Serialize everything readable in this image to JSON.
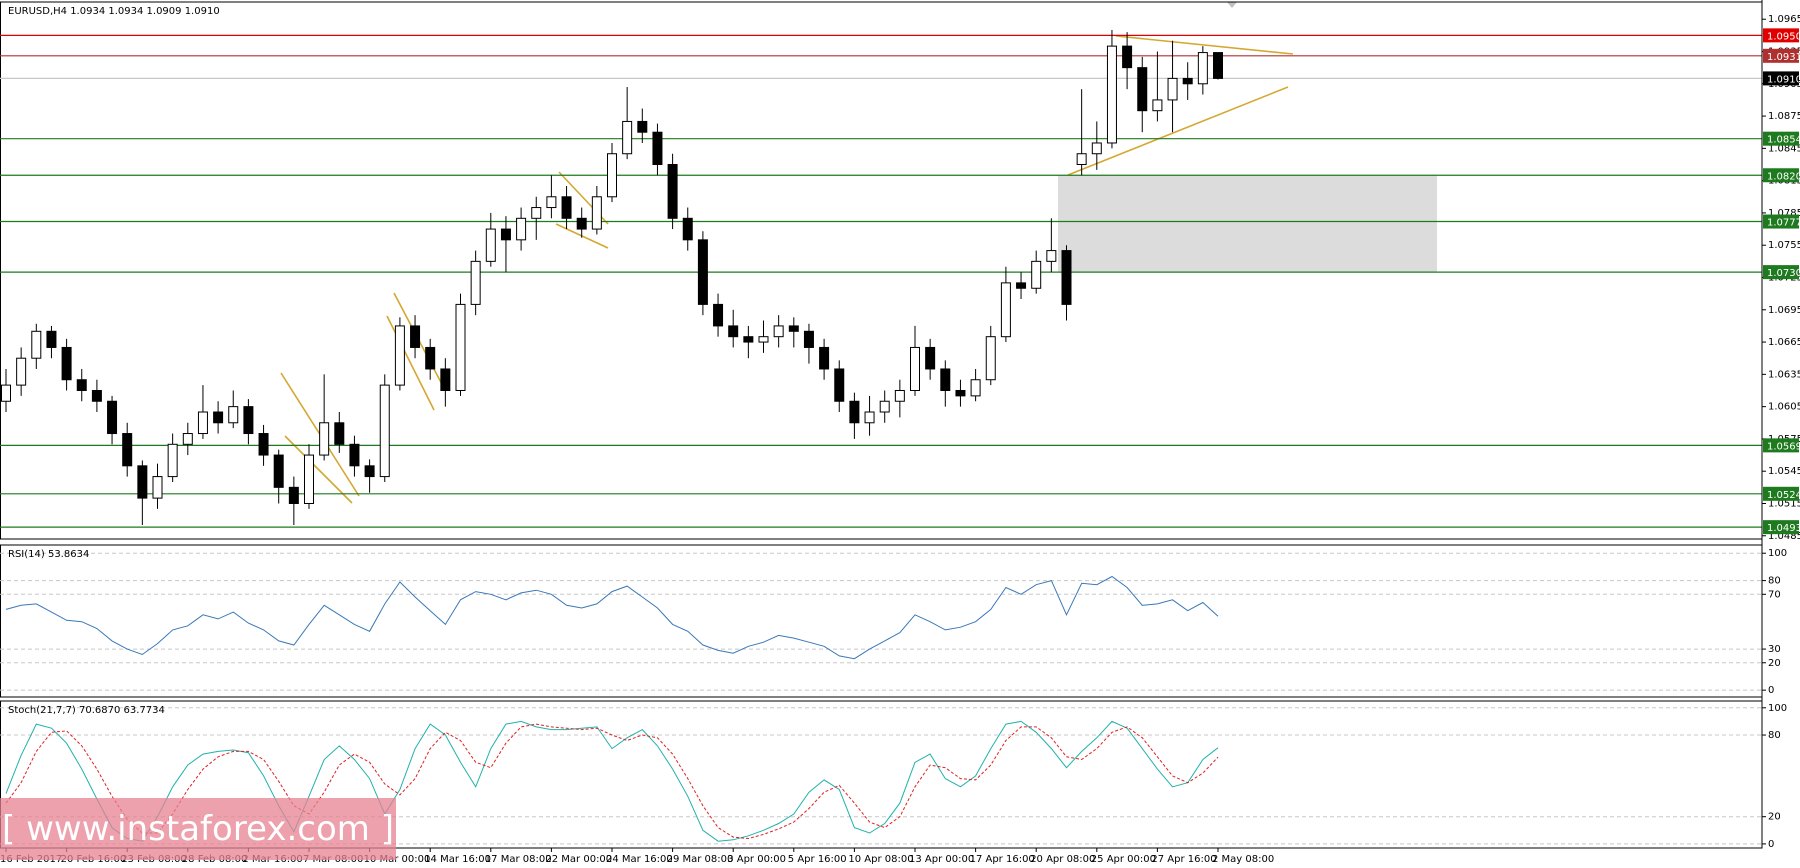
{
  "watermark": "[ www.instaforex.com ]",
  "chart_data": [
    {
      "type": "candlestick",
      "title": "EURUSD,H4  1.0934 1.0934 1.0909 1.0910",
      "categories": [
        "16 Feb 2017",
        null,
        null,
        null,
        "20 Feb 16:00",
        null,
        null,
        null,
        "23 Feb 08:00",
        null,
        null,
        null,
        "28 Feb 08:00",
        null,
        null,
        null,
        "2 Mar 16:00",
        null,
        null,
        null,
        "7 Mar 08:00",
        null,
        null,
        null,
        "10 Mar 00:00",
        null,
        null,
        null,
        "14 Mar 16:00",
        null,
        null,
        null,
        "17 Mar 08:00",
        null,
        null,
        null,
        "22 Mar 00:00",
        null,
        null,
        null,
        "24 Mar 16:00",
        null,
        null,
        null,
        "29 Mar 08:00",
        null,
        null,
        null,
        "3 Apr 00:00",
        null,
        null,
        null,
        "5 Apr 16:00",
        null,
        null,
        null,
        "10 Apr 08:00",
        null,
        null,
        null,
        "13 Apr 00:00",
        null,
        null,
        null,
        "17 Apr 16:00",
        null,
        null,
        null,
        "20 Apr 08:00",
        null,
        null,
        null,
        "25 Apr 00:00",
        null,
        null,
        null,
        "27 Apr 16:00",
        null,
        null,
        null,
        "2 May 08:00"
      ],
      "ohlc": [
        [
          1.061,
          1.064,
          1.06,
          1.0625
        ],
        [
          1.0625,
          1.066,
          1.0615,
          1.065
        ],
        [
          1.065,
          1.0682,
          1.064,
          1.0675
        ],
        [
          1.0675,
          1.068,
          1.065,
          1.066
        ],
        [
          1.066,
          1.0668,
          1.062,
          1.063
        ],
        [
          1.063,
          1.064,
          1.061,
          1.062
        ],
        [
          1.062,
          1.063,
          1.06,
          1.061
        ],
        [
          1.061,
          1.0615,
          1.057,
          1.058
        ],
        [
          1.058,
          1.059,
          1.054,
          1.055
        ],
        [
          1.055,
          1.0555,
          1.0495,
          1.052
        ],
        [
          1.052,
          1.0552,
          1.051,
          1.054
        ],
        [
          1.054,
          1.058,
          1.0535,
          1.057
        ],
        [
          1.057,
          1.059,
          1.056,
          1.058
        ],
        [
          1.058,
          1.0625,
          1.0575,
          1.06
        ],
        [
          1.06,
          1.061,
          1.058,
          1.059
        ],
        [
          1.059,
          1.062,
          1.0585,
          1.0605
        ],
        [
          1.0605,
          1.0612,
          1.057,
          1.058
        ],
        [
          1.058,
          1.0588,
          1.055,
          1.056
        ],
        [
          1.056,
          1.0565,
          1.0515,
          1.053
        ],
        [
          1.053,
          1.054,
          1.0495,
          1.0515
        ],
        [
          1.0515,
          1.057,
          1.051,
          1.056
        ],
        [
          1.056,
          1.0635,
          1.0555,
          1.059
        ],
        [
          1.059,
          1.06,
          1.0562,
          1.057
        ],
        [
          1.057,
          1.0578,
          1.054,
          1.055
        ],
        [
          1.055,
          1.0556,
          1.0525,
          1.054
        ],
        [
          1.054,
          1.0635,
          1.0535,
          1.0625
        ],
        [
          1.0625,
          1.0688,
          1.062,
          1.068
        ],
        [
          1.068,
          1.069,
          1.065,
          1.066
        ],
        [
          1.066,
          1.0668,
          1.063,
          1.064
        ],
        [
          1.064,
          1.065,
          1.0605,
          1.062
        ],
        [
          1.062,
          1.071,
          1.0615,
          1.07
        ],
        [
          1.07,
          1.075,
          1.069,
          1.074
        ],
        [
          1.074,
          1.0785,
          1.0735,
          1.077
        ],
        [
          1.077,
          1.0782,
          1.073,
          1.076
        ],
        [
          1.076,
          1.079,
          1.075,
          1.078
        ],
        [
          1.078,
          1.08,
          1.076,
          1.079
        ],
        [
          1.079,
          1.082,
          1.078,
          1.08
        ],
        [
          1.08,
          1.081,
          1.077,
          1.078
        ],
        [
          1.078,
          1.079,
          1.0762,
          1.077
        ],
        [
          1.077,
          1.081,
          1.0765,
          1.08
        ],
        [
          1.08,
          1.085,
          1.0795,
          1.084
        ],
        [
          1.084,
          1.0902,
          1.0835,
          1.087
        ],
        [
          1.087,
          1.0882,
          1.085,
          1.086
        ],
        [
          1.086,
          1.0868,
          1.082,
          1.083
        ],
        [
          1.083,
          1.084,
          1.077,
          1.078
        ],
        [
          1.078,
          1.079,
          1.075,
          1.076
        ],
        [
          1.076,
          1.0768,
          1.069,
          1.07
        ],
        [
          1.07,
          1.071,
          1.067,
          1.068
        ],
        [
          1.068,
          1.0695,
          1.066,
          1.067
        ],
        [
          1.067,
          1.068,
          1.065,
          1.0665
        ],
        [
          1.0665,
          1.0685,
          1.0655,
          1.067
        ],
        [
          1.067,
          1.069,
          1.066,
          1.068
        ],
        [
          1.068,
          1.0688,
          1.066,
          1.0675
        ],
        [
          1.0675,
          1.0682,
          1.0645,
          1.066
        ],
        [
          1.066,
          1.0668,
          1.063,
          1.064
        ],
        [
          1.064,
          1.0648,
          1.06,
          1.061
        ],
        [
          1.061,
          1.0618,
          1.0575,
          1.059
        ],
        [
          1.059,
          1.0615,
          1.0578,
          1.06
        ],
        [
          1.06,
          1.062,
          1.059,
          1.061
        ],
        [
          1.061,
          1.063,
          1.0595,
          1.062
        ],
        [
          1.062,
          1.068,
          1.0615,
          1.066
        ],
        [
          1.066,
          1.0668,
          1.063,
          1.064
        ],
        [
          1.064,
          1.0648,
          1.0605,
          1.062
        ],
        [
          1.062,
          1.063,
          1.0605,
          1.0615
        ],
        [
          1.0615,
          1.064,
          1.061,
          1.063
        ],
        [
          1.063,
          1.068,
          1.0625,
          1.067
        ],
        [
          1.067,
          1.0735,
          1.0665,
          1.072
        ],
        [
          1.072,
          1.073,
          1.0705,
          1.0715
        ],
        [
          1.0715,
          1.075,
          1.071,
          1.074
        ],
        [
          1.074,
          1.078,
          1.073,
          1.075
        ],
        [
          1.075,
          1.0755,
          1.0685,
          1.07
        ],
        [
          1.083,
          1.09,
          1.082,
          1.084
        ],
        [
          1.084,
          1.087,
          1.0825,
          1.085
        ],
        [
          1.085,
          1.0955,
          1.0845,
          1.094
        ],
        [
          1.094,
          1.0953,
          1.09,
          1.092
        ],
        [
          1.092,
          1.093,
          1.086,
          1.088
        ],
        [
          1.088,
          1.0935,
          1.087,
          1.089
        ],
        [
          1.089,
          1.0945,
          1.086,
          1.091
        ],
        [
          1.091,
          1.0925,
          1.089,
          1.0905
        ],
        [
          1.0905,
          1.094,
          1.0895,
          1.0934
        ],
        [
          1.0934,
          1.0934,
          1.0909,
          1.091
        ]
      ],
      "up_color": "#ffffff",
      "down_color": "#000000",
      "ylim": [
        1.0482,
        1.0981
      ],
      "yticks": [
        1.0965,
        1.0935,
        1.0905,
        1.0875,
        1.0845,
        1.0815,
        1.0785,
        1.0755,
        1.0725,
        1.0695,
        1.0665,
        1.0635,
        1.0605,
        1.0575,
        1.0545,
        1.0515,
        1.0485
      ],
      "levels": [
        {
          "value": 1.095,
          "label": "1.0950",
          "color": "#e00000"
        },
        {
          "value": 1.0931,
          "label": "1.0931",
          "color": "#b03030"
        },
        {
          "value": 1.091,
          "label": "1.0910",
          "color": "#000000"
        },
        {
          "value": 1.0854,
          "label": "1.0854",
          "color": "#1e7a1e"
        },
        {
          "value": 1.082,
          "label": "1.0820",
          "color": "#1e7a1e"
        },
        {
          "value": 1.0777,
          "label": "1.0777",
          "color": "#1e7a1e"
        },
        {
          "value": 1.073,
          "label": "1.0730",
          "color": "#1e7a1e"
        },
        {
          "value": 1.0569,
          "label": "1.0569",
          "color": "#1e7a1e"
        },
        {
          "value": 1.0524,
          "label": "1.0524",
          "color": "#1e7a1e"
        },
        {
          "value": 1.0493,
          "label": "1.0493",
          "color": "#1e7a1e"
        }
      ]
    },
    {
      "type": "line",
      "title": "RSI(14) 53.8634",
      "ylim": [
        -5,
        106
      ],
      "yticks": [
        100,
        80,
        70,
        30,
        20,
        0
      ],
      "grid": true,
      "series": [
        {
          "color": "#3a78b8",
          "values": [
            59,
            62,
            63,
            57,
            51,
            50,
            45,
            36,
            30,
            26,
            34,
            44,
            47,
            55,
            52,
            57,
            49,
            44,
            36,
            33,
            48,
            62,
            55,
            48,
            43,
            63,
            79,
            68,
            58,
            48,
            66,
            72,
            70,
            66,
            71,
            73,
            70,
            62,
            60,
            63,
            72,
            76,
            68,
            60,
            48,
            43,
            33,
            29,
            27,
            32,
            35,
            40,
            38,
            35,
            32,
            25,
            23,
            30,
            36,
            42,
            55,
            50,
            44,
            46,
            50,
            59,
            75,
            70,
            77,
            80,
            55,
            78,
            77,
            83,
            75,
            62,
            63,
            66,
            58,
            64,
            54
          ]
        }
      ]
    },
    {
      "type": "line",
      "title": "Stoch(21,7,7) 70.6870 63.7734",
      "ylim": [
        -3,
        105
      ],
      "yticks": [
        100,
        80,
        20,
        0
      ],
      "grid": true,
      "series": [
        {
          "color": "#20b2aa",
          "values": [
            37,
            65,
            88,
            85,
            74,
            55,
            33,
            12,
            4,
            2,
            20,
            42,
            58,
            66,
            68,
            69,
            67,
            50,
            28,
            9,
            35,
            62,
            72,
            62,
            48,
            22,
            40,
            70,
            88,
            80,
            60,
            42,
            70,
            88,
            90,
            86,
            84,
            84,
            85,
            86,
            70,
            78,
            84,
            72,
            55,
            35,
            10,
            2,
            3,
            6,
            10,
            15,
            22,
            38,
            47,
            40,
            12,
            8,
            15,
            30,
            60,
            66,
            48,
            42,
            50,
            70,
            88,
            90,
            82,
            70,
            56,
            68,
            78,
            90,
            85,
            70,
            55,
            42,
            45,
            62,
            70.7
          ]
        },
        {
          "color": "#e02020",
          "dashed": true,
          "values": [
            30,
            45,
            68,
            82,
            83,
            72,
            55,
            35,
            18,
            8,
            8,
            22,
            40,
            55,
            64,
            68,
            68,
            62,
            46,
            28,
            22,
            38,
            58,
            66,
            60,
            44,
            36,
            48,
            70,
            82,
            76,
            60,
            56,
            74,
            86,
            88,
            86,
            85,
            84,
            85,
            80,
            76,
            80,
            78,
            66,
            48,
            28,
            12,
            5,
            4,
            7,
            11,
            16,
            26,
            38,
            43,
            30,
            16,
            12,
            20,
            42,
            58,
            56,
            48,
            47,
            58,
            76,
            86,
            86,
            78,
            64,
            62,
            70,
            82,
            86,
            78,
            64,
            50,
            45,
            52,
            63.8
          ]
        }
      ]
    }
  ]
}
